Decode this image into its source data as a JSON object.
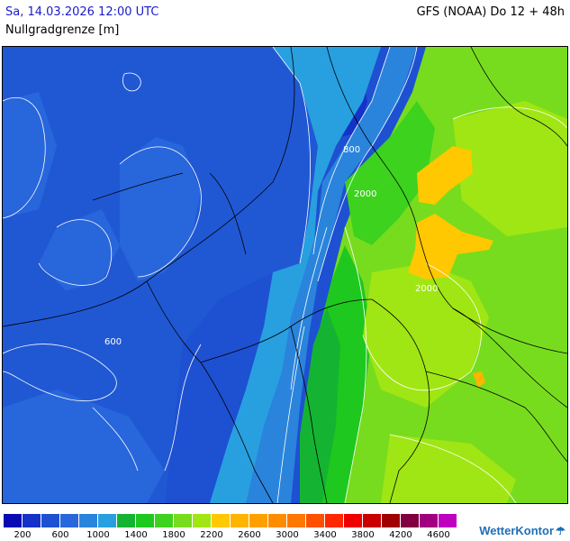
{
  "header": {
    "date": "Sa, 14.03.2026 12:00 UTC",
    "model": "GFS (NOAA) Do 12 + 48h",
    "parameter": "Nullgradgrenze [m]"
  },
  "map": {
    "contour_labels": [
      {
        "text": "600",
        "near": "west"
      },
      {
        "text": "800",
        "near": "north-east coast"
      },
      {
        "text": "2000",
        "near": "north-east"
      },
      {
        "text": "2000",
        "near": "east"
      }
    ]
  },
  "legend": {
    "colors": [
      "#0a0ab4",
      "#1432c8",
      "#1e50d2",
      "#2866dc",
      "#2a84dc",
      "#28a0e0",
      "#14b432",
      "#1ec81e",
      "#3cd21e",
      "#78dc1e",
      "#a0e614",
      "#ffc800",
      "#ffb400",
      "#ffa000",
      "#ff8c00",
      "#ff7800",
      "#ff5000",
      "#ff2800",
      "#f00000",
      "#c80000",
      "#a00000",
      "#800040",
      "#a00080",
      "#c000c0"
    ],
    "ticks": [
      "200",
      "600",
      "1000",
      "1400",
      "1800",
      "2200",
      "2600",
      "3000",
      "3400",
      "3800",
      "4200",
      "4600"
    ]
  },
  "brand": {
    "name": "WetterKontor",
    "icon": "rain-cloud-icon"
  }
}
